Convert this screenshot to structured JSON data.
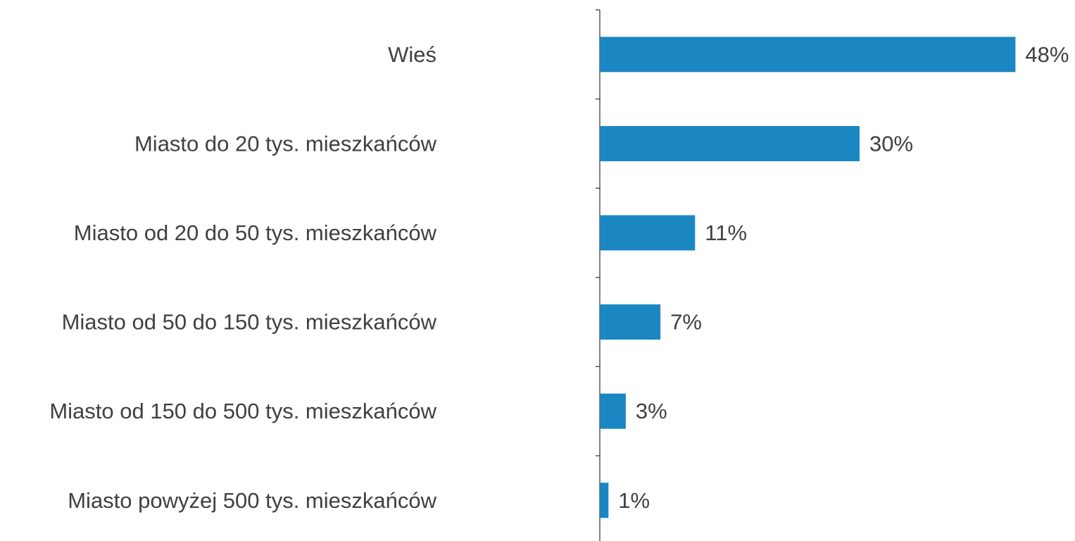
{
  "chart_data": {
    "type": "bar",
    "orientation": "horizontal",
    "categories": [
      "Wieś",
      "Miasto do 20 tys. mieszkańców",
      "Miasto od 20 do 50 tys. mieszkańców",
      "Miasto od 50 do 150 tys. mieszkańców",
      "Miasto od 150 do 500 tys. mieszkańców",
      "Miasto powyżej 500 tys. mieszkańców"
    ],
    "values": [
      48,
      30,
      11,
      7,
      3,
      1
    ],
    "value_labels": [
      "48%",
      "30%",
      "11%",
      "7%",
      "3%",
      "1%"
    ],
    "unit": "%",
    "xlim": [
      0,
      50
    ],
    "grid": false,
    "legend": "none",
    "colors": {
      "bar": "#1a87c2",
      "axis": "#404040",
      "text": "#404040"
    }
  }
}
